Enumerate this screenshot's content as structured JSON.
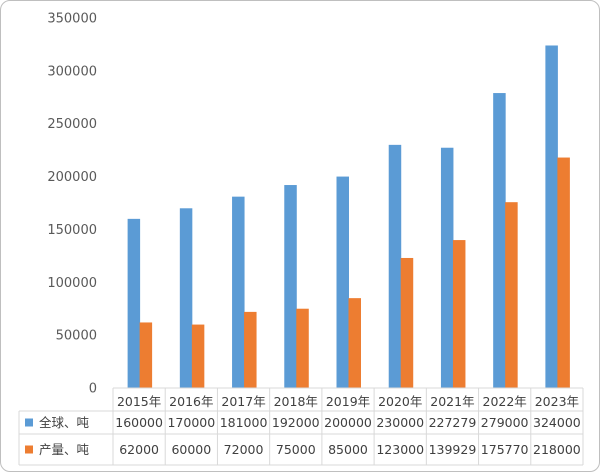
{
  "chart_data": {
    "type": "bar",
    "title": "",
    "xlabel": "",
    "ylabel": "",
    "ylim": [
      0,
      350000
    ],
    "yticks": [
      0,
      50000,
      100000,
      150000,
      200000,
      250000,
      300000,
      350000
    ],
    "ytick_labels": [
      "0",
      "50000",
      "100000",
      "150000",
      "200000",
      "250000",
      "300000",
      "350000"
    ],
    "grid": false,
    "legend": "data-table-bottom",
    "categories": [
      "2015年",
      "2016年",
      "2017年",
      "2018年",
      "2019年",
      "2020年",
      "2021年",
      "2022年",
      "2023年"
    ],
    "series": [
      {
        "name": "全球、吨",
        "color": "#5b9bd5",
        "values": [
          160000,
          170000,
          181000,
          192000,
          200000,
          230000,
          227279,
          279000,
          324000
        ],
        "labels": [
          "160000",
          "170000",
          "181000",
          "192000",
          "200000",
          "230000",
          "227279",
          "279000",
          "324000"
        ]
      },
      {
        "name": "产量、吨",
        "color": "#ed7d31",
        "values": [
          62000,
          60000,
          72000,
          75000,
          85000,
          123000,
          139929,
          175770,
          218000
        ],
        "labels": [
          "62000",
          "60000",
          "72000",
          "75000",
          "85000",
          "123000",
          "139929",
          "175770",
          "218000"
        ]
      }
    ]
  }
}
